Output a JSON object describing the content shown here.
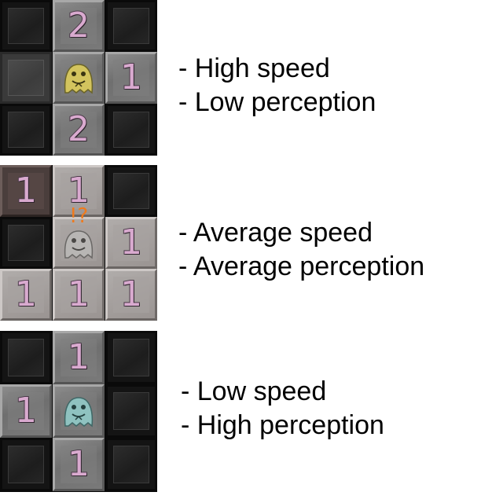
{
  "panels": [
    {
      "monster": "yellow-ghost-monster",
      "monster_color": "#d3c45e",
      "cells": [
        {
          "style": "dark",
          "number": ""
        },
        {
          "style": "lit",
          "number": "2"
        },
        {
          "style": "dark",
          "number": ""
        },
        {
          "style": "mid",
          "number": ""
        },
        {
          "style": "lit",
          "number": "",
          "monster": true
        },
        {
          "style": "lit",
          "number": "1"
        },
        {
          "style": "dark",
          "number": ""
        },
        {
          "style": "lit",
          "number": "2"
        },
        {
          "style": "dark",
          "number": ""
        }
      ],
      "alert": "",
      "lines": [
        "- High speed",
        "- Low perception"
      ]
    },
    {
      "monster": "gray-ghost-monster",
      "monster_color": "#b8b6b4",
      "cells": [
        {
          "style": "brown",
          "number": "1"
        },
        {
          "style": "pale",
          "number": "1"
        },
        {
          "style": "dark",
          "number": ""
        },
        {
          "style": "dark",
          "number": ""
        },
        {
          "style": "pale",
          "number": "",
          "monster": true
        },
        {
          "style": "pale",
          "number": "1"
        },
        {
          "style": "pale",
          "number": "1"
        },
        {
          "style": "pale",
          "number": "1"
        },
        {
          "style": "pale",
          "number": "1"
        }
      ],
      "alert": "!?",
      "lines": [
        "- Average speed",
        "- Average perception"
      ]
    },
    {
      "monster": "teal-ghost-monster",
      "monster_color": "#8fc2c0",
      "cells": [
        {
          "style": "dark",
          "number": ""
        },
        {
          "style": "lit",
          "number": "1"
        },
        {
          "style": "dark",
          "number": ""
        },
        {
          "style": "lit",
          "number": "1"
        },
        {
          "style": "lit",
          "number": "",
          "monster": true
        },
        {
          "style": "dark",
          "number": ""
        },
        {
          "style": "dark",
          "number": ""
        },
        {
          "style": "lit",
          "number": "1"
        },
        {
          "style": "dark",
          "number": ""
        }
      ],
      "alert": "",
      "lines": [
        "- Low speed",
        "- High perception"
      ]
    }
  ]
}
